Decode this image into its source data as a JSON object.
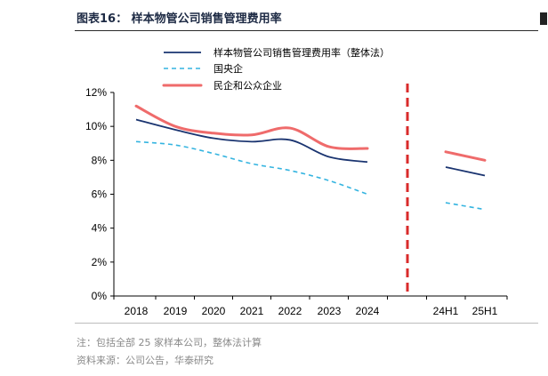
{
  "title": "图表16： 样本物管公司销售管理费用率",
  "notes": {
    "note": "注：包括全部 25 家样本公司，整体法计算",
    "source": "资料来源：公司公告，华泰研究"
  },
  "chart_data": {
    "type": "line",
    "categories": [
      "2018",
      "2019",
      "2020",
      "2021",
      "2022",
      "2023",
      "2024",
      "",
      "24H1",
      "25H1"
    ],
    "yticks": [
      "0%",
      "2%",
      "4%",
      "6%",
      "8%",
      "10%",
      "12%"
    ],
    "ylim": [
      0,
      12
    ],
    "legend_position": "top",
    "divider_after_index": 6,
    "colors": {
      "sample": "#1a3470",
      "soe": "#34b4e0",
      "private": "#ef6b6b",
      "divider": "#d92b2b"
    },
    "series": [
      {
        "name": "样本物管公司销售管理费用率（整体法）",
        "key": "sample",
        "style": "solid",
        "annual": [
          10.4,
          9.8,
          9.3,
          9.1,
          9.2,
          8.2,
          7.9
        ],
        "half": [
          7.6,
          7.1
        ]
      },
      {
        "name": "国央企",
        "key": "soe",
        "style": "dashed",
        "annual": [
          9.1,
          8.9,
          8.4,
          7.8,
          7.4,
          6.8,
          6.0
        ],
        "half": [
          5.5,
          5.1
        ]
      },
      {
        "name": "民企和公众企业",
        "key": "private",
        "style": "solid-thick",
        "annual": [
          11.2,
          10.0,
          9.6,
          9.5,
          9.9,
          8.8,
          8.7
        ],
        "half": [
          8.5,
          8.0
        ]
      }
    ]
  }
}
